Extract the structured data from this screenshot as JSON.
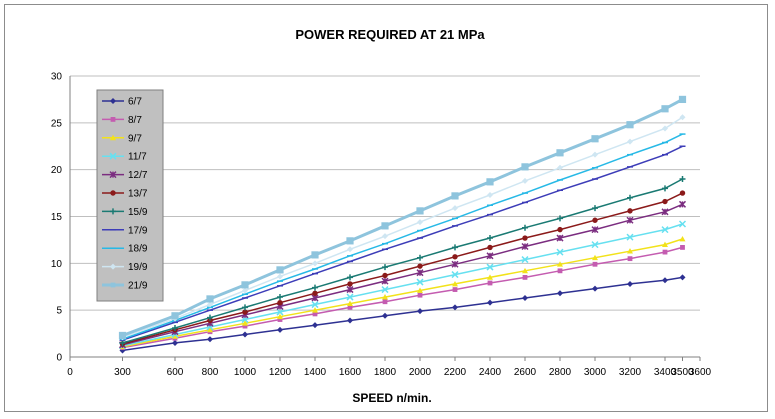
{
  "chart_data": {
    "type": "line",
    "title": "POWER REQUIRED AT 21 MPa",
    "xlabel": "SPEED n/min.",
    "ylabel": "",
    "xlim": [
      0,
      3600
    ],
    "ylim": [
      0,
      30
    ],
    "x_ticks": [
      0,
      300,
      600,
      800,
      1000,
      1200,
      1400,
      1600,
      1800,
      2000,
      2200,
      2400,
      2600,
      2800,
      3000,
      3200,
      3400,
      3500,
      3600
    ],
    "y_ticks": [
      0,
      5,
      10,
      15,
      20,
      25,
      30
    ],
    "grid": "horizontal",
    "legend_position": "left",
    "x": [
      300,
      600,
      800,
      1000,
      1200,
      1400,
      1600,
      1800,
      2000,
      2200,
      2400,
      2600,
      2800,
      3000,
      3200,
      3400,
      3500
    ],
    "series": [
      {
        "name": "6/7",
        "color": "#2e3192",
        "marker": "diamond",
        "values": [
          0.7,
          1.5,
          1.9,
          2.4,
          2.9,
          3.4,
          3.9,
          4.4,
          4.9,
          5.3,
          5.8,
          6.3,
          6.8,
          7.3,
          7.8,
          8.2,
          8.5
        ]
      },
      {
        "name": "8/7",
        "color": "#c45cb0",
        "marker": "square",
        "values": [
          1.0,
          2.0,
          2.7,
          3.3,
          4.0,
          4.6,
          5.3,
          5.9,
          6.6,
          7.2,
          7.9,
          8.5,
          9.2,
          9.9,
          10.5,
          11.2,
          11.7
        ]
      },
      {
        "name": "9/7",
        "color": "#f2e21a",
        "marker": "triangle",
        "values": [
          1.1,
          2.2,
          2.9,
          3.6,
          4.3,
          5.0,
          5.7,
          6.4,
          7.1,
          7.8,
          8.5,
          9.2,
          9.9,
          10.6,
          11.3,
          12.0,
          12.6
        ]
      },
      {
        "name": "11/7",
        "color": "#66e0f0",
        "marker": "x",
        "values": [
          1.2,
          2.4,
          3.2,
          4.0,
          4.8,
          5.6,
          6.4,
          7.2,
          8.0,
          8.8,
          9.6,
          10.4,
          11.2,
          12.0,
          12.8,
          13.6,
          14.2
        ]
      },
      {
        "name": "12/7",
        "color": "#7b2d80",
        "marker": "star",
        "values": [
          1.3,
          2.7,
          3.6,
          4.5,
          5.4,
          6.3,
          7.2,
          8.1,
          9.0,
          9.9,
          10.8,
          11.8,
          12.7,
          13.6,
          14.6,
          15.5,
          16.3
        ]
      },
      {
        "name": "13/7",
        "color": "#8b1a1a",
        "marker": "circle",
        "values": [
          1.4,
          2.9,
          3.9,
          4.8,
          5.8,
          6.8,
          7.8,
          8.7,
          9.7,
          10.7,
          11.7,
          12.7,
          13.6,
          14.6,
          15.6,
          16.6,
          17.5
        ]
      },
      {
        "name": "15/9",
        "color": "#1a7a73",
        "marker": "plus",
        "values": [
          1.5,
          3.1,
          4.2,
          5.3,
          6.4,
          7.4,
          8.5,
          9.6,
          10.6,
          11.7,
          12.7,
          13.8,
          14.8,
          15.9,
          17.0,
          18.0,
          19.0
        ]
      },
      {
        "name": "17/9",
        "color": "#3d3db8",
        "marker": "dash",
        "values": [
          1.8,
          3.7,
          5.0,
          6.3,
          7.6,
          8.9,
          10.2,
          11.5,
          12.7,
          14.0,
          15.2,
          16.5,
          17.8,
          19.0,
          20.3,
          21.6,
          22.5
        ]
      },
      {
        "name": "18/9",
        "color": "#27b9e6",
        "marker": "dash",
        "values": [
          1.9,
          3.9,
          5.3,
          6.7,
          8.1,
          9.4,
          10.8,
          12.1,
          13.5,
          14.8,
          16.2,
          17.5,
          18.9,
          20.2,
          21.6,
          22.9,
          23.8
        ]
      },
      {
        "name": "19/9",
        "color": "#cfe6f2",
        "marker": "diamond",
        "values": [
          2.1,
          4.1,
          5.6,
          7.1,
          8.6,
          10.0,
          11.5,
          12.9,
          14.4,
          15.9,
          17.3,
          18.8,
          20.2,
          21.6,
          23.0,
          24.4,
          25.6
        ]
      },
      {
        "name": "21/9",
        "color": "#8ec4dd",
        "marker": "square",
        "values": [
          2.3,
          4.4,
          6.2,
          7.7,
          9.3,
          10.9,
          12.4,
          14.0,
          15.6,
          17.2,
          18.7,
          20.3,
          21.8,
          23.3,
          24.8,
          26.5,
          27.5
        ]
      }
    ]
  }
}
